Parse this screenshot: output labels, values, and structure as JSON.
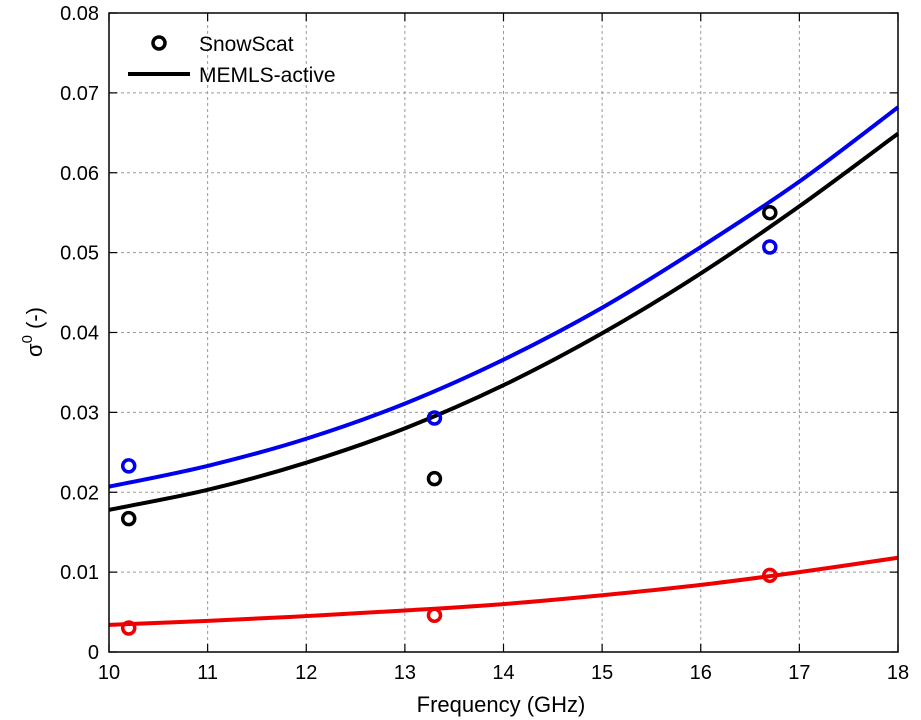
{
  "chart_data": {
    "type": "scatter",
    "xlabel": "Frequency (GHz)",
    "ylabel_base": "σ",
    "ylabel_sup": "0",
    "ylabel_tail": " (-)",
    "xlim": [
      10,
      18
    ],
    "ylim": [
      0,
      0.08
    ],
    "xticks": [
      10,
      11,
      12,
      13,
      14,
      15,
      16,
      17,
      18
    ],
    "xtick_labels": [
      "10",
      "11",
      "12",
      "13",
      "14",
      "15",
      "16",
      "17",
      "18"
    ],
    "yticks": [
      0,
      0.01,
      0.02,
      0.03,
      0.04,
      0.05,
      0.06,
      0.07,
      0.08
    ],
    "ytick_labels": [
      "0",
      "0.01",
      "0.02",
      "0.03",
      "0.04",
      "0.05",
      "0.06",
      "0.07",
      "0.08"
    ],
    "grid": true,
    "legend_placement": "top-left",
    "legend": [
      {
        "label": "SnowScat",
        "marker": "circle",
        "color": "#000000"
      },
      {
        "label": "MEMLS-active",
        "marker": "line",
        "color": "#000000"
      }
    ],
    "points": [
      {
        "name": "black",
        "color": "#000000",
        "x": [
          10.2,
          13.3,
          16.7
        ],
        "y": [
          0.0167,
          0.0217,
          0.055
        ]
      },
      {
        "name": "blue",
        "color": "#0000ee",
        "x": [
          10.2,
          13.3,
          16.7
        ],
        "y": [
          0.0233,
          0.0293,
          0.0507
        ]
      },
      {
        "name": "red",
        "color": "#ee0000",
        "x": [
          10.2,
          13.3,
          16.7
        ],
        "y": [
          0.003,
          0.0046,
          0.0096
        ]
      }
    ],
    "lines": [
      {
        "name": "blue",
        "color": "#0000ee",
        "x": [
          10,
          11,
          12,
          13,
          14,
          15,
          16,
          17,
          18
        ],
        "y": [
          0.0207,
          0.0233,
          0.0267,
          0.0311,
          0.0366,
          0.0431,
          0.0507,
          0.0589,
          0.0682
        ]
      },
      {
        "name": "black",
        "color": "#000000",
        "x": [
          10,
          11,
          12,
          13,
          14,
          15,
          16,
          17,
          18
        ],
        "y": [
          0.0178,
          0.0203,
          0.0237,
          0.028,
          0.0334,
          0.0399,
          0.0474,
          0.0558,
          0.0649
        ]
      },
      {
        "name": "red",
        "color": "#ee0000",
        "x": [
          10,
          11,
          12,
          13,
          14,
          15,
          16,
          17,
          18
        ],
        "y": [
          0.0034,
          0.0039,
          0.0045,
          0.0052,
          0.006,
          0.0071,
          0.0084,
          0.01,
          0.0118
        ]
      }
    ]
  }
}
